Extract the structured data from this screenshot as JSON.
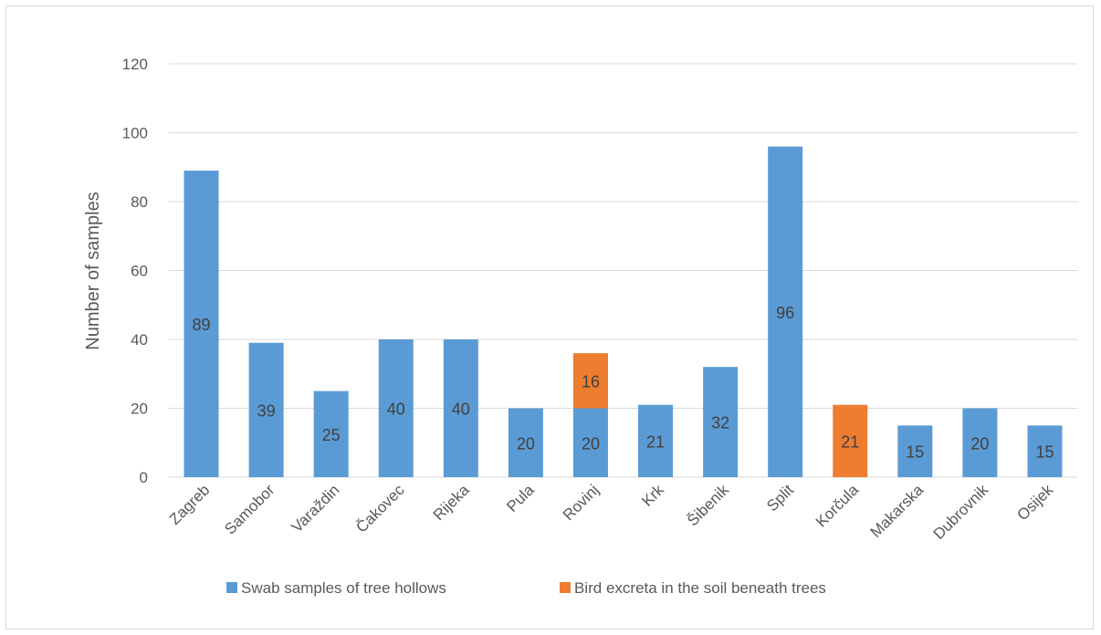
{
  "chart_data": {
    "type": "bar",
    "stacked": true,
    "title": "",
    "xlabel": "",
    "ylabel": "Number of samples",
    "ylim": [
      0,
      120
    ],
    "yticks": [
      0,
      20,
      40,
      60,
      80,
      100,
      120
    ],
    "grid": true,
    "legend_position": "bottom",
    "categories": [
      "Zagreb",
      "Samobor",
      "Varaždin",
      "Čakovec",
      "Rijeka",
      "Pula",
      "Rovinj",
      "Krk",
      "Šibenik",
      "Split",
      "Korčula",
      "Makarska",
      "Dubrovnik",
      "Osijek"
    ],
    "series": [
      {
        "name": "Swab samples of tree hollows",
        "color": "#5b9bd5",
        "values": [
          89,
          39,
          25,
          40,
          40,
          20,
          20,
          21,
          32,
          96,
          0,
          15,
          20,
          15
        ]
      },
      {
        "name": "Bird excreta in the soil beneath trees",
        "color": "#ed7d31",
        "values": [
          0,
          0,
          0,
          0,
          0,
          0,
          16,
          0,
          0,
          0,
          21,
          0,
          0,
          0
        ]
      }
    ]
  }
}
